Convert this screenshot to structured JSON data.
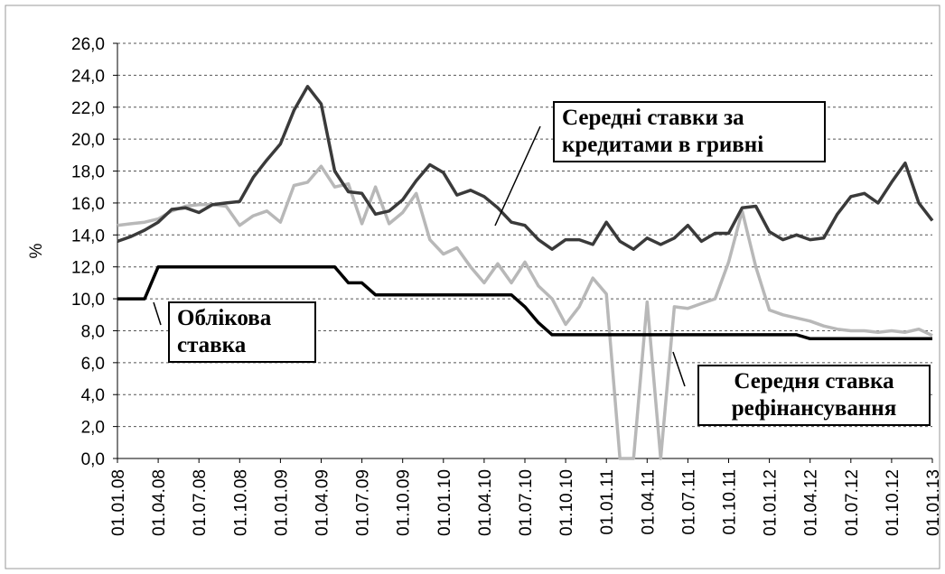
{
  "chart_data": {
    "type": "line",
    "ylabel": "%",
    "categories": [
      "01.01.08",
      null,
      null,
      "01.04.08",
      null,
      null,
      "01.07.08",
      null,
      null,
      "01.10.08",
      null,
      null,
      "01.01.09",
      null,
      null,
      "01.04.09",
      null,
      null,
      "01.07.09",
      null,
      null,
      "01.10.09",
      null,
      null,
      "01.01.10",
      null,
      null,
      "01.04.10",
      null,
      null,
      "01.07.10",
      null,
      null,
      "01.10.10",
      null,
      null,
      "01.01.11",
      null,
      null,
      "01.04.11",
      null,
      null,
      "01.07.11",
      null,
      null,
      "01.10.11",
      null,
      null,
      "01.01.12",
      null,
      null,
      "01.04.12",
      null,
      null,
      "01.07.12",
      null,
      null,
      "01.10.12",
      null,
      null,
      "01.01.13"
    ],
    "series": [
      {
        "name": "Середні ставки за кредитами в гривні",
        "color": "#3a3a3a",
        "values": [
          13.6,
          13.9,
          14.3,
          14.8,
          15.6,
          15.7,
          15.4,
          15.9,
          16.0,
          16.1,
          17.6,
          18.7,
          19.7,
          21.8,
          23.3,
          22.2,
          18.0,
          16.7,
          16.6,
          15.3,
          15.5,
          16.2,
          17.4,
          18.4,
          17.9,
          16.5,
          16.8,
          16.4,
          15.7,
          14.8,
          14.6,
          13.7,
          13.1,
          13.7,
          13.7,
          13.4,
          14.8,
          13.6,
          13.1,
          13.8,
          13.4,
          13.8,
          14.6,
          13.6,
          14.1,
          14.1,
          15.7,
          15.8,
          14.2,
          13.7,
          14.0,
          13.7,
          13.8,
          15.3,
          16.4,
          16.6,
          16.0,
          17.3,
          18.5,
          16.0,
          14.9
        ]
      },
      {
        "name": "Середня ставка рефінансування",
        "color": "#b8b8b8",
        "values": [
          14.6,
          14.7,
          14.8,
          15.0,
          15.5,
          15.8,
          15.9,
          15.9,
          15.8,
          14.6,
          15.2,
          15.5,
          14.8,
          17.1,
          17.3,
          18.3,
          17.0,
          17.2,
          14.7,
          17.0,
          14.7,
          15.4,
          16.6,
          13.7,
          12.8,
          13.2,
          12.0,
          11.0,
          12.2,
          11.0,
          12.3,
          10.8,
          10.0,
          8.4,
          9.5,
          11.3,
          10.3,
          0,
          0,
          9.8,
          0,
          9.5,
          9.4,
          9.7,
          10.0,
          12.3,
          15.5,
          12.0,
          9.3,
          9.0,
          8.8,
          8.6,
          8.3,
          8.1,
          8.0,
          8.0,
          7.9,
          8.0,
          7.9,
          8.1,
          7.7
        ]
      },
      {
        "name": "Облікова ставка",
        "color": "#000000",
        "values": [
          10,
          10,
          10,
          12,
          12,
          12,
          12,
          12,
          12,
          12,
          12,
          12,
          12,
          12,
          12,
          12,
          12,
          11,
          11,
          10.25,
          10.25,
          10.25,
          10.25,
          10.25,
          10.25,
          10.25,
          10.25,
          10.25,
          10.25,
          10.25,
          9.5,
          8.5,
          7.75,
          7.75,
          7.75,
          7.75,
          7.75,
          7.75,
          7.75,
          7.75,
          7.75,
          7.75,
          7.75,
          7.75,
          7.75,
          7.75,
          7.75,
          7.75,
          7.75,
          7.75,
          7.75,
          7.5,
          7.5,
          7.5,
          7.5,
          7.5,
          7.5,
          7.5,
          7.5,
          7.5,
          7.5
        ]
      }
    ],
    "ylim": [
      0,
      26
    ],
    "yticks": [
      {
        "value": 0,
        "label": "0,0"
      },
      {
        "value": 2,
        "label": "2,0"
      },
      {
        "value": 4,
        "label": "4,0"
      },
      {
        "value": 6,
        "label": "6,0"
      },
      {
        "value": 8,
        "label": "8,0"
      },
      {
        "value": 10,
        "label": "10,0"
      },
      {
        "value": 12,
        "label": "12,0"
      },
      {
        "value": 14,
        "label": "14,0"
      },
      {
        "value": 16,
        "label": "16,0"
      },
      {
        "value": 18,
        "label": "18,0"
      },
      {
        "value": 20,
        "label": "20,0"
      },
      {
        "value": 22,
        "label": "22,0"
      },
      {
        "value": 24,
        "label": "24,0"
      },
      {
        "value": 26,
        "label": "26,0"
      }
    ],
    "grid": true
  }
}
